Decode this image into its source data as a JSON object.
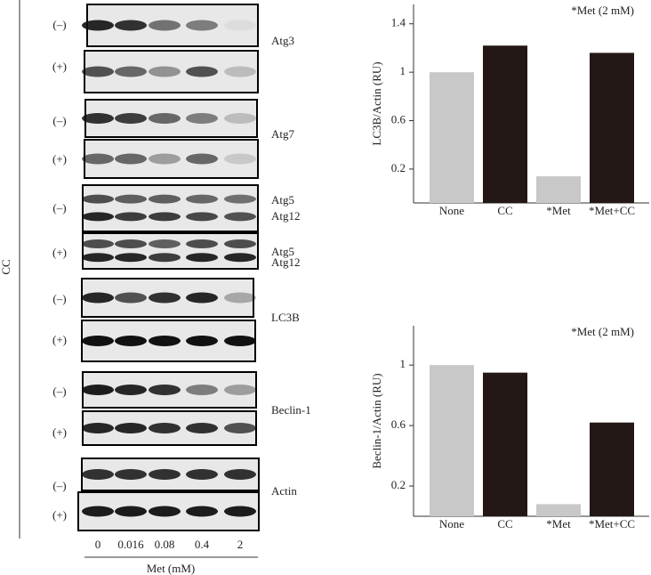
{
  "blot": {
    "side_label": "CC",
    "row_signs": [
      "(–)",
      "(+)",
      "(–)",
      "(+)",
      "(–)",
      "(+)",
      "(–)",
      "(+)",
      "(–)",
      "(+)",
      "(–)",
      "(+)"
    ],
    "proteins": [
      "Atg3",
      "Atg7",
      "Atg5",
      "Atg12",
      "Atg5",
      "Atg12",
      "LC3B",
      "Beclin-1",
      "Actin"
    ],
    "lanes": [
      "0",
      "0.016",
      "0.08",
      "0.4",
      "2"
    ],
    "xlabel": "Met (mM)"
  },
  "chart_data": [
    {
      "type": "bar",
      "ylabel": "LC3B/Actin (RU)",
      "annotation": "*Met (2 mM)",
      "categories": [
        "None",
        "CC",
        "*Met",
        "*Met+CC"
      ],
      "values": [
        1.0,
        1.22,
        0.14,
        1.16
      ],
      "colors": [
        "#c8c8c8",
        "#231815",
        "#c8c8c8",
        "#231815"
      ],
      "ylim": [
        -0.08,
        1.56
      ],
      "yticks": [
        0.2,
        0.6,
        1.0,
        1.4
      ]
    },
    {
      "type": "bar",
      "ylabel": "Beclin-1/Actin (RU)",
      "annotation": "*Met (2 mM)",
      "categories": [
        "None",
        "CC",
        "*Met",
        "*Met+CC"
      ],
      "values": [
        1.0,
        0.95,
        0.08,
        0.62
      ],
      "colors": [
        "#c8c8c8",
        "#231815",
        "#c8c8c8",
        "#231815"
      ],
      "ylim": [
        0,
        1.26
      ],
      "yticks": [
        0.2,
        0.6,
        1.0
      ]
    }
  ]
}
